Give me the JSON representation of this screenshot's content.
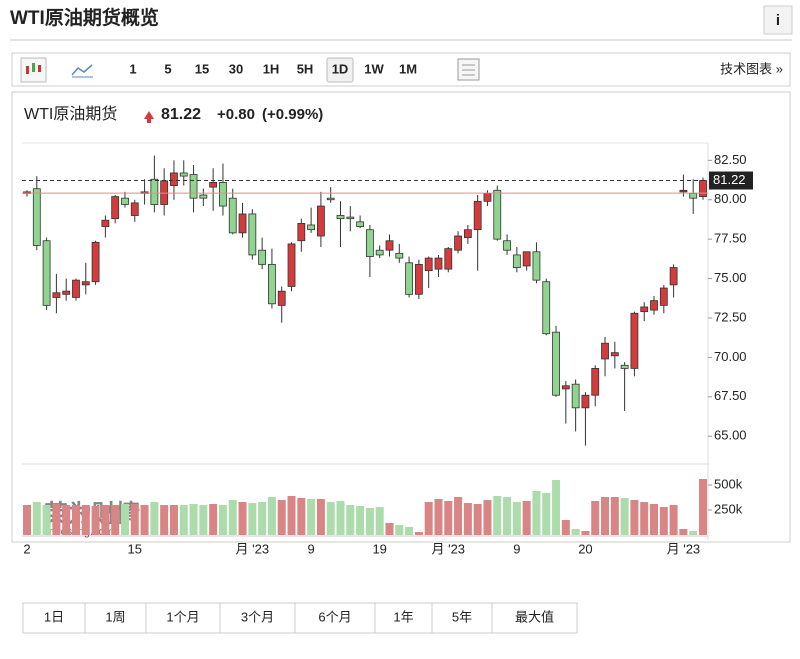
{
  "header": {
    "title": "WTI原油期货概览",
    "info": "i"
  },
  "toolbar": {
    "intervals": [
      "1",
      "5",
      "15",
      "30",
      "1H",
      "5H",
      "1D",
      "1W",
      "1M"
    ],
    "selected": "1D",
    "link": "技术图表 »"
  },
  "quote": {
    "name": "WTI原油期货",
    "change": "+0.80",
    "change_pct": "(+0.99%)"
  },
  "chart_data": {
    "type": "candlestick",
    "last_price": 81.22,
    "previous_close": 80.42,
    "up_color": "#d23c3c",
    "down_color": "#8fd48f",
    "up_volume_color": "#d98585",
    "down_volume_color": "#acdcac",
    "watermark": "英为财情",
    "watermark_sub": "Investing.com",
    "categories": [
      "2",
      null,
      null,
      null,
      null,
      null,
      null,
      null,
      null,
      null,
      null,
      "15",
      null,
      null,
      null,
      null,
      null,
      null,
      null,
      null,
      null,
      null,
      null,
      "月 '23",
      null,
      null,
      null,
      null,
      null,
      "9",
      null,
      null,
      null,
      null,
      null,
      null,
      "19",
      null,
      null,
      null,
      null,
      null,
      null,
      "月 '23",
      null,
      null,
      null,
      null,
      null,
      null,
      "9",
      null,
      null,
      null,
      null,
      null,
      null,
      "20",
      null,
      null,
      null,
      null,
      null,
      null,
      null,
      null,
      null,
      "月 '23",
      null,
      null
    ],
    "open": [
      80.4,
      80.7,
      77.4,
      73.8,
      74.0,
      73.8,
      74.6,
      74.8,
      78.3,
      78.8,
      80.1,
      79.0,
      80.4,
      81.3,
      79.7,
      80.9,
      81.7,
      81.6,
      80.3,
      80.8,
      81.1,
      80.1,
      77.9,
      79.1,
      76.8,
      75.9,
      73.3,
      74.5,
      77.4,
      78.4,
      77.7,
      80.1,
      79.0,
      78.9,
      78.6,
      78.1,
      76.8,
      76.8,
      76.6,
      76.0,
      74.0,
      75.5,
      75.6,
      75.6,
      76.8,
      77.6,
      78.1,
      79.9,
      80.6,
      77.4,
      76.5,
      75.8,
      76.7,
      74.8,
      71.6,
      68.0,
      68.3,
      66.8,
      67.6,
      69.9,
      70.1,
      69.5,
      69.3,
      72.9,
      73.0,
      73.3,
      74.6,
      80.5,
      80.4,
      80.2
    ],
    "high": [
      80.6,
      81.5,
      77.6,
      75.3,
      75.0,
      75.0,
      76.0,
      77.4,
      79.0,
      80.3,
      80.5,
      80.0,
      81.3,
      82.8,
      82.0,
      82.5,
      82.5,
      82.2,
      80.7,
      82.0,
      82.3,
      80.7,
      79.8,
      79.4,
      77.6,
      76.9,
      74.5,
      77.3,
      78.8,
      79.5,
      80.5,
      80.8,
      79.9,
      79.6,
      79.0,
      78.4,
      77.1,
      77.8,
      77.2,
      76.4,
      76.2,
      76.4,
      76.5,
      77.0,
      78.0,
      78.4,
      80.3,
      80.6,
      80.9,
      77.8,
      77.0,
      76.5,
      77.3,
      75.0,
      72.0,
      68.5,
      68.6,
      67.8,
      69.5,
      71.3,
      71.0,
      69.7,
      72.9,
      73.5,
      73.9,
      74.6,
      75.9,
      81.6,
      81.3,
      81.4
    ],
    "low": [
      80.2,
      76.8,
      73.0,
      72.8,
      73.6,
      73.6,
      74.0,
      74.6,
      77.6,
      78.5,
      79.5,
      78.6,
      79.7,
      79.2,
      79.0,
      80.0,
      80.9,
      79.2,
      79.6,
      79.3,
      79.0,
      77.8,
      77.6,
      76.2,
      75.6,
      73.1,
      72.2,
      74.2,
      76.7,
      77.9,
      77.0,
      79.8,
      77.0,
      78.0,
      78.2,
      75.1,
      76.3,
      76.4,
      76.0,
      73.8,
      73.7,
      74.4,
      75.1,
      75.4,
      76.6,
      77.2,
      75.5,
      79.6,
      77.4,
      76.5,
      75.4,
      75.5,
      74.7,
      71.4,
      67.5,
      65.8,
      65.3,
      64.4,
      66.9,
      68.8,
      69.3,
      66.6,
      68.8,
      72.3,
      72.7,
      72.8,
      73.8,
      80.2,
      79.1,
      80.0
    ],
    "close": [
      80.5,
      77.1,
      73.3,
      74.1,
      74.2,
      74.9,
      74.8,
      77.3,
      78.7,
      80.2,
      79.7,
      79.8,
      80.5,
      79.7,
      81.2,
      81.7,
      81.5,
      80.1,
      80.1,
      81.1,
      79.6,
      77.9,
      79.1,
      76.5,
      75.9,
      73.4,
      74.2,
      77.2,
      78.5,
      78.1,
      79.6,
      80.0,
      78.8,
      78.8,
      78.3,
      76.4,
      76.5,
      77.4,
      76.3,
      74.0,
      75.9,
      76.3,
      76.3,
      76.9,
      77.7,
      78.1,
      79.9,
      80.4,
      77.5,
      76.8,
      75.7,
      76.7,
      74.9,
      71.5,
      67.6,
      68.2,
      66.8,
      67.6,
      69.3,
      70.9,
      70.3,
      69.3,
      72.8,
      73.2,
      73.6,
      74.4,
      75.7,
      80.6,
      80.1,
      81.22
    ],
    "volume": [
      300000,
      330000,
      300000,
      310000,
      300000,
      300000,
      300000,
      290000,
      300000,
      300000,
      310000,
      310000,
      300000,
      330000,
      300000,
      300000,
      300000,
      310000,
      300000,
      310000,
      300000,
      350000,
      330000,
      320000,
      330000,
      380000,
      350000,
      390000,
      370000,
      360000,
      360000,
      330000,
      340000,
      300000,
      290000,
      270000,
      280000,
      120000,
      100000,
      80000,
      30000,
      330000,
      360000,
      340000,
      380000,
      320000,
      310000,
      350000,
      390000,
      380000,
      330000,
      340000,
      440000,
      420000,
      550000,
      150000,
      60000,
      40000,
      340000,
      380000,
      380000,
      370000,
      350000,
      330000,
      310000,
      280000,
      300000,
      60000,
      40000,
      560000
    ],
    "ylim": [
      63.3,
      83.6
    ],
    "yticks": [
      {
        "value": 65,
        "label": "65.00"
      },
      {
        "value": 67.5,
        "label": "67.50"
      },
      {
        "value": 70,
        "label": "70.00"
      },
      {
        "value": 72.5,
        "label": "72.50"
      },
      {
        "value": 75,
        "label": "75.00"
      },
      {
        "value": 77.5,
        "label": "77.50"
      },
      {
        "value": 80,
        "label": "80.00"
      },
      {
        "value": 82.5,
        "label": "82.50"
      }
    ],
    "y2lim": [
      0,
      700000
    ],
    "y2ticks": [
      {
        "value": 250000,
        "label": "250k"
      },
      {
        "value": 500000,
        "label": "500k"
      }
    ]
  },
  "ranges": [
    "1日",
    "1周",
    "1个月",
    "3个月",
    "6个月",
    "1年",
    "5年",
    "最大值"
  ]
}
